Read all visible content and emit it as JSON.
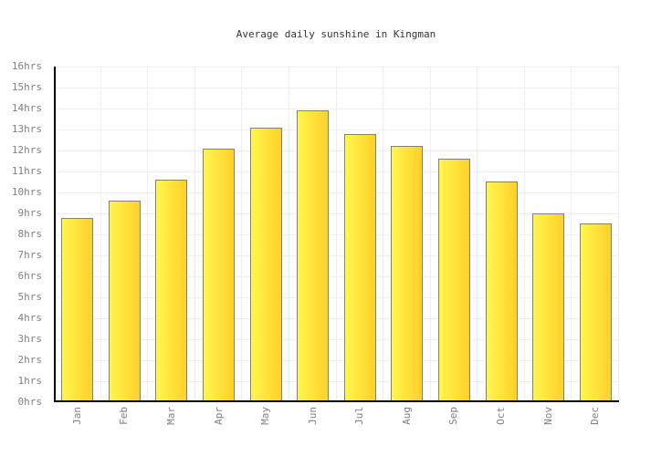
{
  "chart_data": {
    "type": "bar",
    "title": "Average daily sunshine in Kingman",
    "categories": [
      "Jan",
      "Feb",
      "Mar",
      "Apr",
      "May",
      "Jun",
      "Jul",
      "Aug",
      "Sep",
      "Oct",
      "Nov",
      "Dec"
    ],
    "values": [
      8.8,
      9.6,
      10.6,
      12.1,
      13.1,
      13.9,
      12.8,
      12.2,
      11.6,
      10.5,
      9.0,
      8.5
    ],
    "unit": "hrs",
    "xlabel": "",
    "ylabel": "",
    "ylim": [
      0,
      16
    ],
    "y_tick_labels": [
      "0hrs",
      "1hrs",
      "2hrs",
      "3hrs",
      "4hrs",
      "5hrs",
      "6hrs",
      "7hrs",
      "8hrs",
      "9hrs",
      "10hrs",
      "11hrs",
      "12hrs",
      "13hrs",
      "14hrs",
      "15hrs",
      "16hrs"
    ],
    "grid": true,
    "legend_position": "none",
    "colors": {
      "background": "#ffffff",
      "bar_gradient_left": "#fff64d",
      "bar_gradient_right": "#ffd02a",
      "bar_border": "#808080",
      "axis": "#000000",
      "gridline": "#eeeeee",
      "tick_label": "#808080",
      "title": "#333333"
    }
  }
}
